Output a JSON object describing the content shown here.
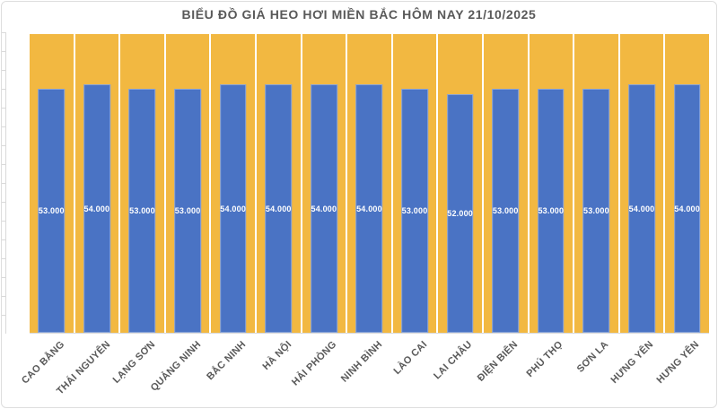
{
  "chart_data": {
    "type": "bar",
    "title": "BIỂU ĐỒ GIÁ HEO HƠI MIỀN BẮC HÔM NAY 21/10/2025",
    "categories": [
      "CAO BẰNG",
      "THÁI NGUYÊN",
      "LẠNG SƠN",
      "QUẢNG NINH",
      "BẮC NINH",
      "HÀ NỘI",
      "HẢI PHÒNG",
      "NINH BÌNH",
      "LÀO CAI",
      "LAI CHÂU",
      "ĐIỆN BIÊN",
      "PHÚ THỌ",
      "SƠN LA",
      "HƯNG YÊN",
      "HƯNG YÊN"
    ],
    "values": [
      53000,
      54000,
      53000,
      53000,
      54000,
      54000,
      54000,
      54000,
      53000,
      52000,
      53000,
      53000,
      53000,
      54000,
      54000
    ],
    "value_labels": [
      "53.000",
      "54.000",
      "53.000",
      "53.000",
      "54.000",
      "54.000",
      "54.000",
      "54.000",
      "53.000",
      "52.000",
      "53.000",
      "53.000",
      "53.000",
      "54.000",
      "54.000"
    ],
    "xlabel": "",
    "ylabel": "",
    "ylim": [
      0,
      65000
    ],
    "grid": false,
    "legend": false,
    "layout": {
      "background_columns": "full-height",
      "value_label_position": "center-inside",
      "x_label_rotation_deg": -45,
      "y_axis_labels_visible": false
    },
    "colors": {
      "bar": "#4a73c4",
      "background_column": "#f2b841",
      "value_label": "#ffffff",
      "axis_line": "#d9d9d9",
      "axis_text": "#595959",
      "title_text": "#595959",
      "chart_background": "#ffffff"
    }
  }
}
